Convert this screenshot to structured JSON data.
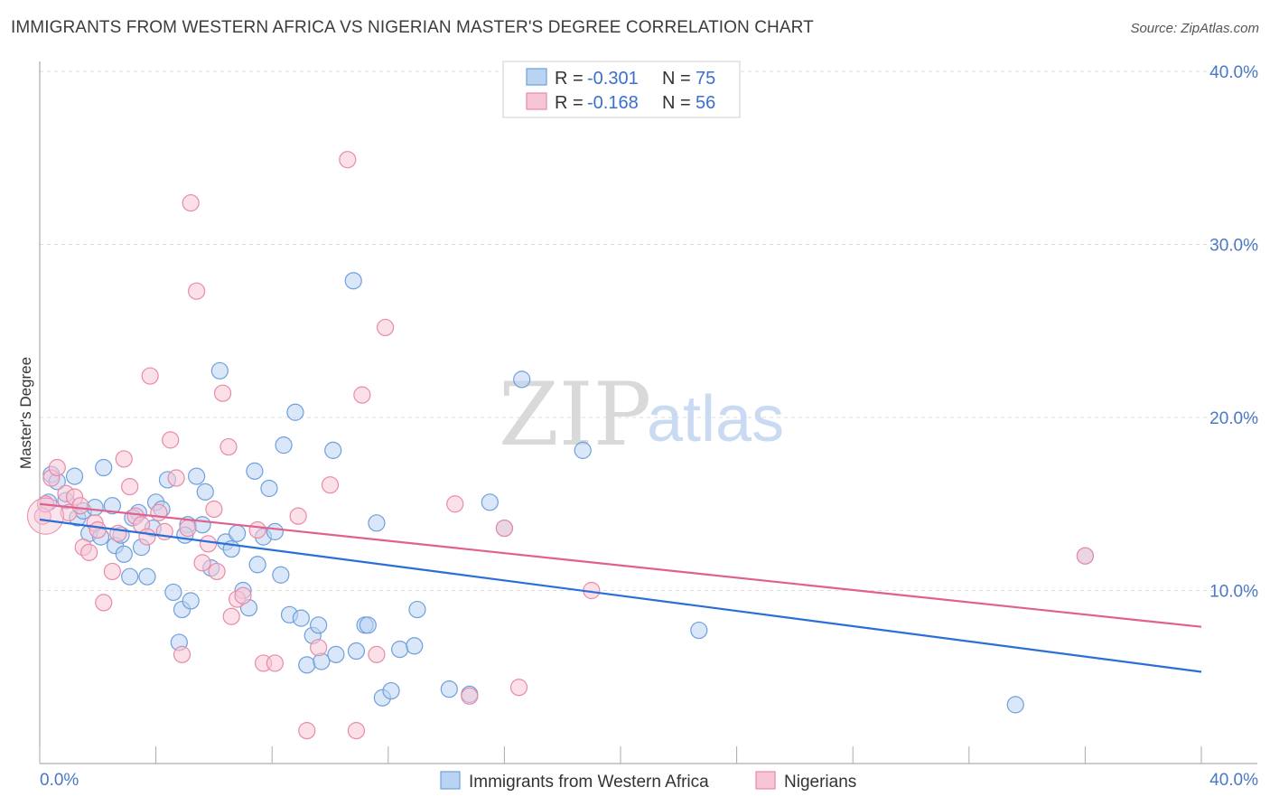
{
  "header": {
    "title": "IMMIGRANTS FROM WESTERN AFRICA VS NIGERIAN MASTER'S DEGREE CORRELATION CHART",
    "source": "Source: ZipAtlas.com"
  },
  "watermark": {
    "zip": "ZIP",
    "atlas": "atlas"
  },
  "colors": {
    "blue_fill": "#b9d3f3",
    "blue_stroke": "#6f9fdc",
    "blue_line": "#2a6fd6",
    "pink_fill": "#f7c6d6",
    "pink_stroke": "#e88aa8",
    "pink_line": "#e0608e",
    "tick_text": "#4a78c4",
    "grid": "#dddddd"
  },
  "legend": {
    "rows": [
      {
        "r_label": "R =",
        "r_value": "-0.301",
        "n_label": "N =",
        "n_value": "75"
      },
      {
        "r_label": "R =",
        "r_value": "-0.168",
        "n_label": "N =",
        "n_value": "56"
      }
    ]
  },
  "chart_data": {
    "type": "scatter",
    "ylabel": "Master's Degree",
    "xlim": [
      0,
      40
    ],
    "ylim": [
      0,
      40
    ],
    "x_tick_labels": [
      "0.0%",
      "40.0%"
    ],
    "y_tick_labels": [
      "10.0%",
      "20.0%",
      "30.0%",
      "40.0%"
    ],
    "y_ticks": [
      10,
      20,
      30,
      40
    ],
    "grid": true,
    "series": [
      {
        "name": "Immigrants from Western Africa",
        "color": "blue",
        "trend": [
          [
            0,
            14.1
          ],
          [
            40,
            5.3
          ]
        ],
        "points": [
          [
            0.3,
            15.1
          ],
          [
            0.4,
            16.7
          ],
          [
            0.6,
            16.3
          ],
          [
            0.9,
            15.2
          ],
          [
            1.2,
            16.6
          ],
          [
            1.3,
            14.2
          ],
          [
            1.5,
            14.6
          ],
          [
            1.7,
            13.3
          ],
          [
            1.9,
            14.8
          ],
          [
            2.1,
            13.1
          ],
          [
            2.2,
            17.1
          ],
          [
            2.5,
            14.9
          ],
          [
            2.6,
            12.6
          ],
          [
            2.8,
            13.2
          ],
          [
            2.9,
            12.1
          ],
          [
            3.1,
            10.8
          ],
          [
            3.4,
            14.5
          ],
          [
            3.5,
            12.5
          ],
          [
            3.7,
            10.8
          ],
          [
            3.9,
            13.6
          ],
          [
            4.0,
            15.1
          ],
          [
            4.2,
            14.7
          ],
          [
            4.4,
            16.4
          ],
          [
            4.6,
            9.9
          ],
          [
            4.8,
            7.0
          ],
          [
            4.9,
            8.9
          ],
          [
            5.1,
            13.8
          ],
          [
            5.2,
            9.4
          ],
          [
            5.4,
            16.6
          ],
          [
            5.6,
            13.8
          ],
          [
            5.7,
            15.7
          ],
          [
            5.9,
            11.3
          ],
          [
            6.2,
            22.7
          ],
          [
            6.4,
            12.8
          ],
          [
            6.6,
            12.4
          ],
          [
            6.8,
            13.3
          ],
          [
            7.0,
            10.0
          ],
          [
            7.2,
            9.0
          ],
          [
            7.4,
            16.9
          ],
          [
            7.5,
            11.5
          ],
          [
            7.7,
            13.1
          ],
          [
            7.9,
            15.9
          ],
          [
            8.1,
            13.4
          ],
          [
            8.3,
            10.9
          ],
          [
            8.4,
            18.4
          ],
          [
            8.6,
            8.6
          ],
          [
            8.8,
            20.3
          ],
          [
            9.0,
            8.4
          ],
          [
            9.2,
            5.7
          ],
          [
            9.4,
            7.4
          ],
          [
            9.6,
            8.0
          ],
          [
            9.7,
            5.9
          ],
          [
            10.1,
            18.1
          ],
          [
            10.2,
            6.3
          ],
          [
            10.8,
            27.9
          ],
          [
            10.9,
            6.5
          ],
          [
            11.2,
            8.0
          ],
          [
            11.3,
            8.0
          ],
          [
            11.6,
            13.9
          ],
          [
            11.8,
            3.8
          ],
          [
            12.1,
            4.2
          ],
          [
            12.4,
            6.6
          ],
          [
            12.9,
            6.8
          ],
          [
            13.0,
            8.9
          ],
          [
            14.1,
            4.3
          ],
          [
            15.5,
            15.1
          ],
          [
            16.0,
            13.6
          ],
          [
            16.6,
            22.2
          ],
          [
            18.7,
            18.1
          ],
          [
            22.7,
            7.7
          ],
          [
            33.6,
            3.4
          ],
          [
            36.0,
            12.0
          ],
          [
            14.8,
            4.0
          ],
          [
            5.0,
            13.2
          ],
          [
            3.2,
            14.2
          ]
        ]
      },
      {
        "name": "Nigerians",
        "color": "pink",
        "trend": [
          [
            0,
            15.0
          ],
          [
            40,
            7.9
          ]
        ],
        "points": [
          [
            0.1,
            14.3
          ],
          [
            0.2,
            15.0
          ],
          [
            0.4,
            16.5
          ],
          [
            0.6,
            17.1
          ],
          [
            0.9,
            15.6
          ],
          [
            1.0,
            14.5
          ],
          [
            1.2,
            15.4
          ],
          [
            1.4,
            14.9
          ],
          [
            1.5,
            12.5
          ],
          [
            1.7,
            12.2
          ],
          [
            1.9,
            13.9
          ],
          [
            2.0,
            13.5
          ],
          [
            2.2,
            9.3
          ],
          [
            2.5,
            11.1
          ],
          [
            2.7,
            13.3
          ],
          [
            2.9,
            17.6
          ],
          [
            3.1,
            16.0
          ],
          [
            3.3,
            14.3
          ],
          [
            3.5,
            13.8
          ],
          [
            3.7,
            13.1
          ],
          [
            3.8,
            22.4
          ],
          [
            4.1,
            14.5
          ],
          [
            4.3,
            13.4
          ],
          [
            4.5,
            18.7
          ],
          [
            4.7,
            16.5
          ],
          [
            4.9,
            6.3
          ],
          [
            5.1,
            13.6
          ],
          [
            5.2,
            32.4
          ],
          [
            5.4,
            27.3
          ],
          [
            5.6,
            11.6
          ],
          [
            5.8,
            12.7
          ],
          [
            6.0,
            14.7
          ],
          [
            6.1,
            11.1
          ],
          [
            6.3,
            21.4
          ],
          [
            6.5,
            18.3
          ],
          [
            6.6,
            8.5
          ],
          [
            6.8,
            9.5
          ],
          [
            7.0,
            9.7
          ],
          [
            7.5,
            13.5
          ],
          [
            7.7,
            5.8
          ],
          [
            8.1,
            5.8
          ],
          [
            8.9,
            14.3
          ],
          [
            9.2,
            1.9
          ],
          [
            9.6,
            6.7
          ],
          [
            10.0,
            16.1
          ],
          [
            10.6,
            34.9
          ],
          [
            10.9,
            1.9
          ],
          [
            11.1,
            21.3
          ],
          [
            11.6,
            6.3
          ],
          [
            11.9,
            25.2
          ],
          [
            14.3,
            15.0
          ],
          [
            14.8,
            3.9
          ],
          [
            16.0,
            13.6
          ],
          [
            16.5,
            4.4
          ],
          [
            19.0,
            10.0
          ],
          [
            36.0,
            12.0
          ]
        ]
      }
    ]
  },
  "bottom_legend": [
    {
      "label": "Immigrants from Western Africa"
    },
    {
      "label": "Nigerians"
    }
  ]
}
